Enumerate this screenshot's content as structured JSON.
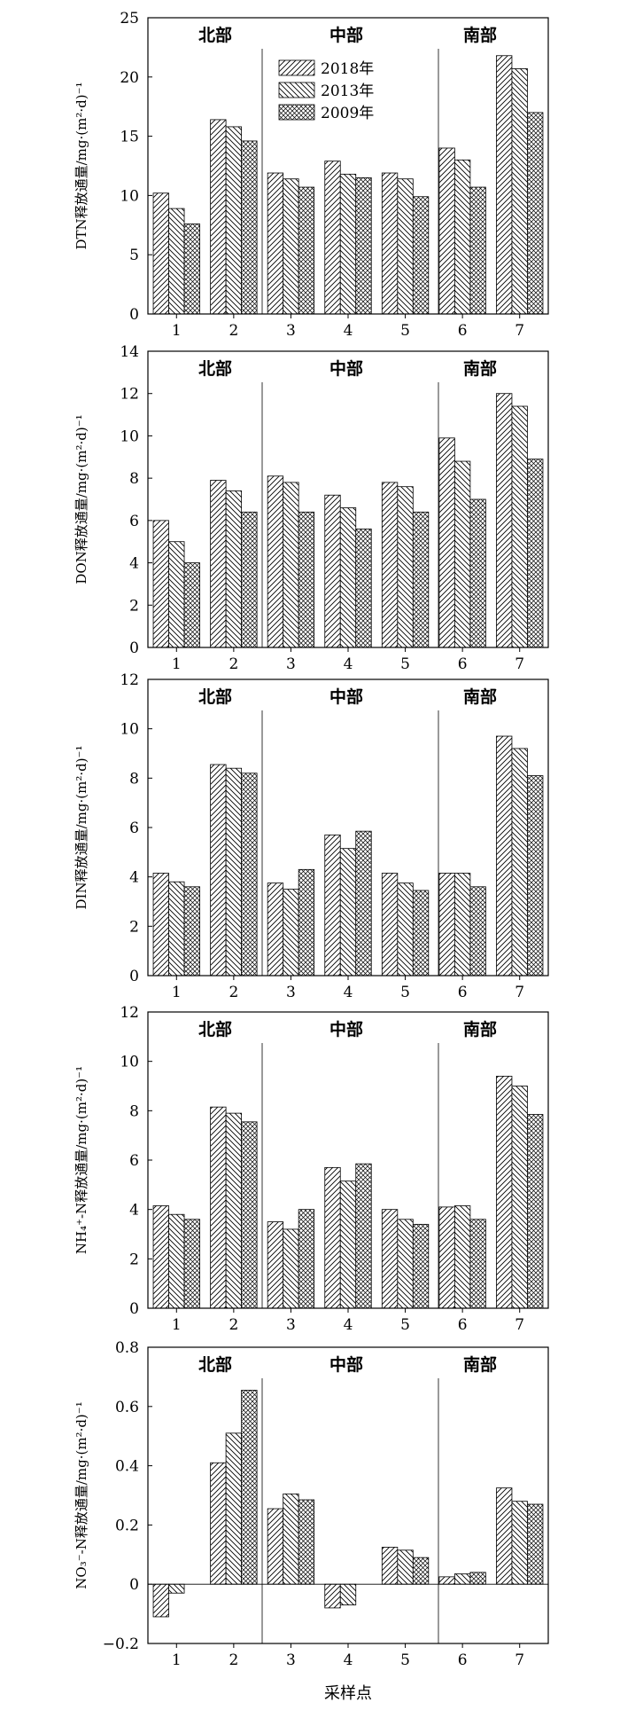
{
  "figure": {
    "xlabel": "采样点"
  },
  "chart_data": [
    {
      "type": "bar",
      "ylabel": "DTN释放通量/mg·(m²·d)⁻¹",
      "categories": [
        "1",
        "2",
        "3",
        "4",
        "5",
        "6",
        "7"
      ],
      "series": [
        {
          "name": "2018年",
          "values": [
            10.2,
            16.4,
            11.9,
            12.9,
            11.9,
            14.0,
            21.8
          ]
        },
        {
          "name": "2013年",
          "values": [
            8.9,
            15.8,
            11.4,
            11.8,
            11.4,
            13.0,
            20.7
          ]
        },
        {
          "name": "2009年",
          "values": [
            7.6,
            14.6,
            10.7,
            11.5,
            9.9,
            10.7,
            17.0
          ]
        }
      ],
      "ylim": [
        0,
        25
      ],
      "yticks": [
        "0",
        "5",
        "10",
        "15",
        "20",
        "25"
      ],
      "regions": [
        "北部",
        "中部",
        "南部"
      ],
      "legend": true
    },
    {
      "type": "bar",
      "ylabel": "DON释放通量/mg·(m²·d)⁻¹",
      "categories": [
        "1",
        "2",
        "3",
        "4",
        "5",
        "6",
        "7"
      ],
      "series": [
        {
          "name": "2018年",
          "values": [
            6.0,
            7.9,
            8.1,
            7.2,
            7.8,
            9.9,
            12.0
          ]
        },
        {
          "name": "2013年",
          "values": [
            5.0,
            7.4,
            7.8,
            6.6,
            7.6,
            8.8,
            11.4
          ]
        },
        {
          "name": "2009年",
          "values": [
            4.0,
            6.4,
            6.4,
            5.6,
            6.4,
            7.0,
            8.9
          ]
        }
      ],
      "ylim": [
        0,
        14
      ],
      "yticks": [
        "0",
        "2",
        "4",
        "6",
        "8",
        "10",
        "12",
        "14"
      ],
      "regions": [
        "北部",
        "中部",
        "南部"
      ],
      "legend": false
    },
    {
      "type": "bar",
      "ylabel": "DIN释放通量/mg·(m²·d)⁻¹",
      "categories": [
        "1",
        "2",
        "3",
        "4",
        "5",
        "6",
        "7"
      ],
      "series": [
        {
          "name": "2018年",
          "values": [
            4.15,
            8.55,
            3.75,
            5.7,
            4.15,
            4.15,
            9.7
          ]
        },
        {
          "name": "2013年",
          "values": [
            3.8,
            8.4,
            3.5,
            5.15,
            3.75,
            4.15,
            9.2
          ]
        },
        {
          "name": "2009年",
          "values": [
            3.6,
            8.2,
            4.3,
            5.85,
            3.45,
            3.6,
            8.1
          ]
        }
      ],
      "ylim": [
        0,
        12
      ],
      "yticks": [
        "0",
        "2",
        "4",
        "6",
        "8",
        "10",
        "12"
      ],
      "regions": [
        "北部",
        "中部",
        "南部"
      ],
      "legend": false
    },
    {
      "type": "bar",
      "ylabel": "NH₄⁺-N释放通量/mg·(m²·d)⁻¹",
      "categories": [
        "1",
        "2",
        "3",
        "4",
        "5",
        "6",
        "7"
      ],
      "series": [
        {
          "name": "2018年",
          "values": [
            4.15,
            8.15,
            3.5,
            5.7,
            4.0,
            4.1,
            9.4
          ]
        },
        {
          "name": "2013年",
          "values": [
            3.8,
            7.9,
            3.2,
            5.15,
            3.6,
            4.15,
            9.0
          ]
        },
        {
          "name": "2009年",
          "values": [
            3.6,
            7.55,
            4.0,
            5.85,
            3.4,
            3.6,
            7.85
          ]
        }
      ],
      "ylim": [
        0,
        12
      ],
      "yticks": [
        "0",
        "2",
        "4",
        "6",
        "8",
        "10",
        "12"
      ],
      "regions": [
        "北部",
        "中部",
        "南部"
      ],
      "legend": false
    },
    {
      "type": "bar",
      "ylabel": "NO₃⁻-N释放通量/mg·(m²·d)⁻¹",
      "categories": [
        "1",
        "2",
        "3",
        "4",
        "5",
        "6",
        "7"
      ],
      "series": [
        {
          "name": "2018年",
          "values": [
            -0.11,
            0.41,
            0.255,
            -0.08,
            0.125,
            0.025,
            0.325
          ]
        },
        {
          "name": "2013年",
          "values": [
            -0.03,
            0.51,
            0.305,
            -0.07,
            0.115,
            0.035,
            0.28
          ]
        },
        {
          "name": "2009年",
          "values": [
            0.0,
            0.655,
            0.285,
            0.0,
            0.09,
            0.04,
            0.27
          ]
        }
      ],
      "ylim": [
        -0.2,
        0.8
      ],
      "yticks": [
        "−0.2",
        "0",
        "0.2",
        "0.4",
        "0.6",
        "0.8"
      ],
      "regions": [
        "北部",
        "中部",
        "南部"
      ],
      "legend": false
    }
  ]
}
